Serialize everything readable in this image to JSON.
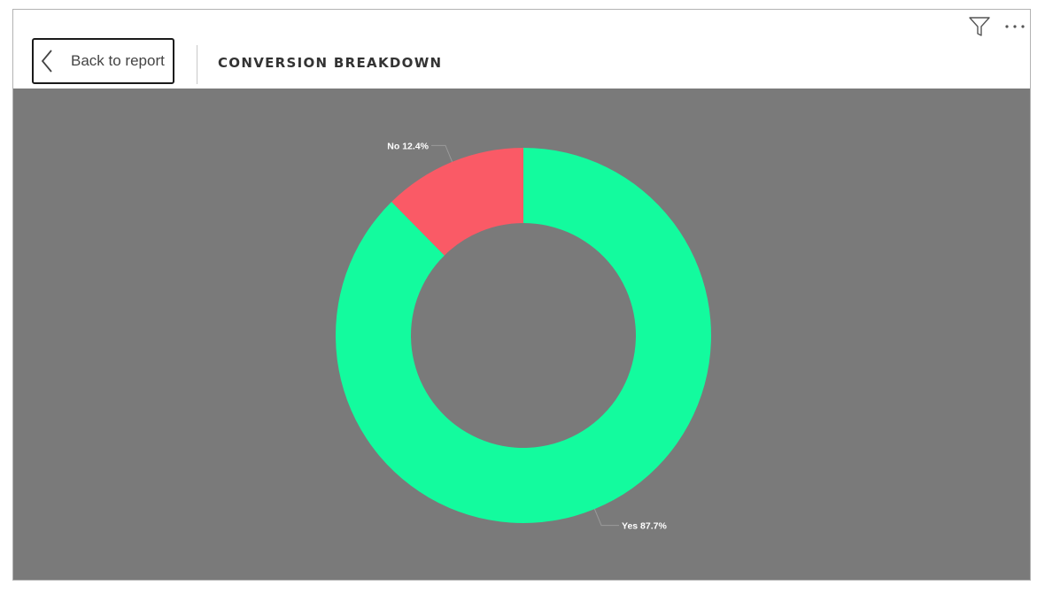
{
  "header": {
    "back_label": "Back to report",
    "title": "CONVERSION BREAKDOWN",
    "back_icon": "chevron-left-icon",
    "filter_icon": "filter-icon",
    "more_icon": "more-options-icon"
  },
  "chart_data": {
    "type": "pie",
    "variant": "donut",
    "title": "",
    "slices": [
      {
        "label": "Yes",
        "value": 87.7,
        "display": "Yes 87.7%",
        "color": "#13fb9e"
      },
      {
        "label": "No",
        "value": 12.4,
        "display": "No 12.4%",
        "color": "#fa5a66"
      }
    ],
    "background_color": "#7a7a7a",
    "legend": "none"
  }
}
